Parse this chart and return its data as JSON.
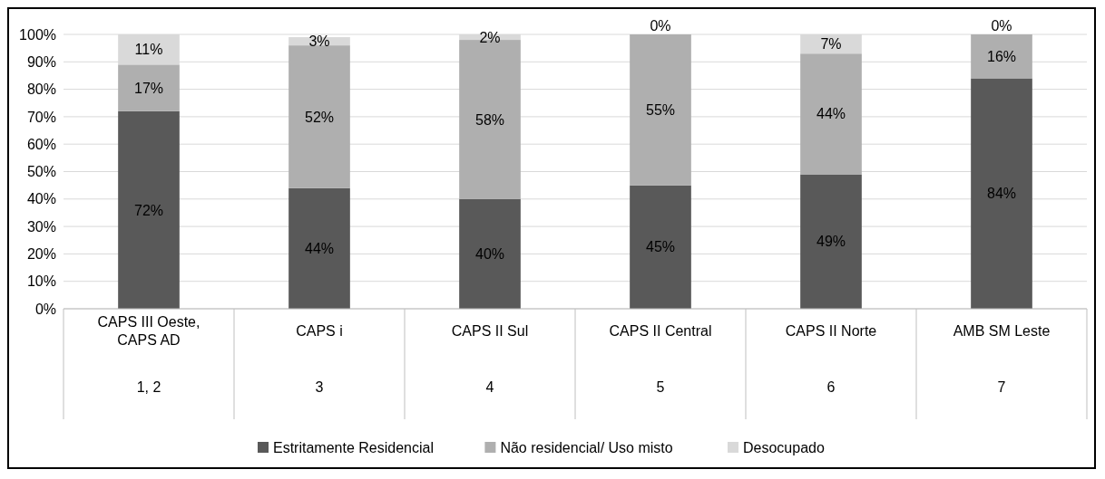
{
  "chart_data": {
    "type": "bar",
    "stacked": true,
    "categories": [
      "CAPS III Oeste, CAPS AD\n1, 2",
      "CAPS i\n3",
      "CAPS II Sul\n4",
      "CAPS II Central\n5",
      "CAPS II Norte\n6",
      "AMB SM Leste\n7"
    ],
    "series": [
      {
        "name": "Estritamente Residencial",
        "color": "#595959",
        "values": [
          72,
          44,
          40,
          45,
          49,
          84
        ],
        "value_labels": [
          "72%",
          "44%",
          "40%",
          "45%",
          "49%",
          "84%"
        ]
      },
      {
        "name": "Não residencial/ Uso misto",
        "color": "#afafaf",
        "values": [
          17,
          52,
          58,
          55,
          44,
          16
        ],
        "value_labels": [
          "17%",
          "52%",
          "58%",
          "55%",
          "44%",
          "16%"
        ]
      },
      {
        "name": "Desocupado",
        "color": "#d9d9d9",
        "values": [
          11,
          3,
          2,
          0,
          7,
          0
        ],
        "value_labels": [
          "11%",
          "3%",
          "2%",
          "0%",
          "7%",
          "0%"
        ]
      }
    ],
    "ylim": [
      0,
      100
    ],
    "yticks": [
      {
        "value": 0,
        "label": "0%"
      },
      {
        "value": 10,
        "label": "10%"
      },
      {
        "value": 20,
        "label": "20%"
      },
      {
        "value": 30,
        "label": "30%"
      },
      {
        "value": 40,
        "label": "40%"
      },
      {
        "value": 50,
        "label": "50%"
      },
      {
        "value": 60,
        "label": "60%"
      },
      {
        "value": 70,
        "label": "70%"
      },
      {
        "value": 80,
        "label": "80%"
      },
      {
        "value": 90,
        "label": "90%"
      },
      {
        "value": 100,
        "label": "100%"
      }
    ],
    "grid": "y",
    "legend": "bottom"
  }
}
